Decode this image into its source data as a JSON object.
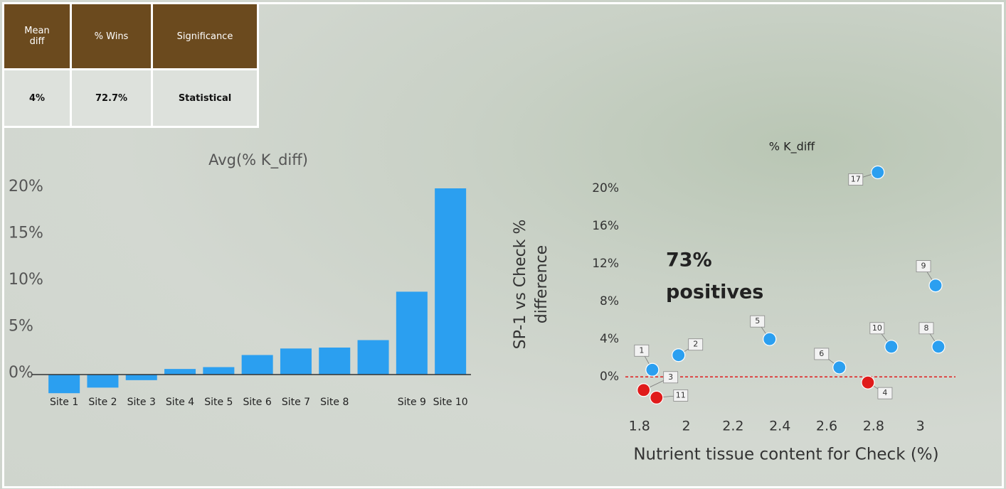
{
  "table": {
    "header": [
      "Mean diff",
      "% Wins",
      "Significance"
    ],
    "rows": [
      [
        "4%",
        "72.7%",
        "Statistical"
      ]
    ]
  },
  "chart_data": [
    {
      "type": "bar",
      "title": "Avg(% K_diff)",
      "categories": [
        "Site 1",
        "Site 2",
        "Site 3",
        "Site 4",
        "Site 5",
        "Site 6",
        "Site 7",
        "Site 8",
        null,
        "Site 9",
        "Site 10"
      ],
      "values": [
        -2.0,
        -1.4,
        -0.6,
        0.6,
        0.8,
        2.1,
        2.8,
        2.9,
        3.7,
        8.9,
        20.0
      ],
      "color": "#2b9ff0",
      "ylim": [
        -3,
        21
      ],
      "yticks": [
        {
          "value": 0,
          "label": "0%"
        },
        {
          "value": 5,
          "label": "5%"
        },
        {
          "value": 10,
          "label": "10%"
        },
        {
          "value": 15,
          "label": "15%"
        },
        {
          "value": 20,
          "label": "20%"
        }
      ]
    },
    {
      "type": "scatter",
      "title": "% K_diff",
      "x_label": "Nutrient tissue content for Check (%)",
      "y_label": [
        "SP-1 vs Check %",
        "difference"
      ],
      "annotation": [
        "73%",
        "positives"
      ],
      "x": [
        1.855,
        1.967,
        1.818,
        1.873,
        2.356,
        2.654,
        2.776,
        2.876,
        3.077,
        3.065,
        2.818
      ],
      "values": [
        0.75,
        2.3,
        -1.4,
        -2.2,
        4.0,
        1.0,
        -0.6,
        3.2,
        3.2,
        9.7,
        21.7
      ],
      "point_labels": [
        "1",
        "2",
        "3",
        "11",
        "5",
        "6",
        "4",
        "10",
        "8",
        "9",
        "17"
      ],
      "colors": [
        "#2b9ff0",
        "#2b9ff0",
        "#e01b1b",
        "#e01b1b",
        "#2b9ff0",
        "#2b9ff0",
        "#e01b1b",
        "#2b9ff0",
        "#2b9ff0",
        "#2b9ff0",
        "#2b9ff0"
      ],
      "reference_line": {
        "value": 0,
        "color": "#e01b1b"
      },
      "xlim": [
        1.74,
        3.15
      ],
      "ylim": [
        -3,
        22
      ],
      "xticks": [
        1.8,
        2,
        2.2,
        2.4,
        2.6,
        2.8,
        3
      ],
      "yticks": [
        {
          "value": 0,
          "label": "0%"
        },
        {
          "value": 4,
          "label": "4%"
        },
        {
          "value": 8,
          "label": "8%"
        },
        {
          "value": 12,
          "label": "12%"
        },
        {
          "value": 16,
          "label": "16%"
        },
        {
          "value": 20,
          "label": "20%"
        }
      ]
    }
  ]
}
